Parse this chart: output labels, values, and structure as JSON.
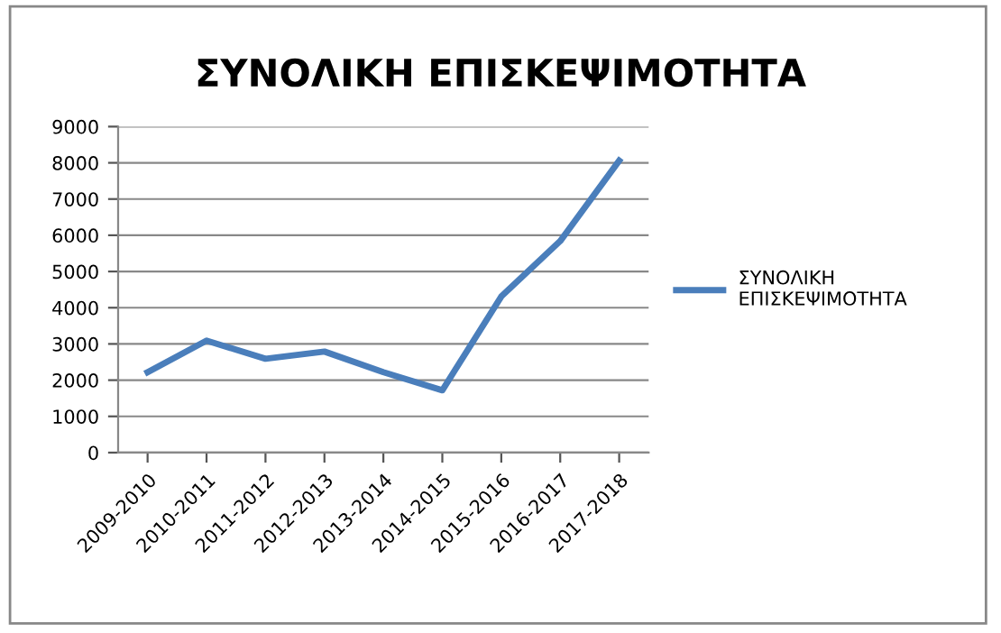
{
  "chart_data": {
    "type": "line",
    "title": "ΣΥΝΟΛΙΚΗ ΕΠΙΣΚΕΨΙΜΟΤΗΤΑ",
    "categories": [
      "2009-2010",
      "2010-2011",
      "2011-2012",
      "2012-2013",
      "2013-2014",
      "2014-2015",
      "2015-2016",
      "2016-2017",
      "2017-2018"
    ],
    "series": [
      {
        "name": "ΣΥΝΟΛΙΚΗ\nΕΠΙΣΚΕΨΙΜΟΤΗΤΑ",
        "color": "#4a7ebb",
        "values": [
          2220,
          3090,
          2590,
          2790,
          2220,
          1720,
          4310,
          5840,
          8060
        ]
      }
    ],
    "ylim": [
      0,
      9000
    ],
    "yticks": [
      0,
      1000,
      2000,
      3000,
      4000,
      5000,
      6000,
      7000,
      8000,
      9000
    ],
    "grid": "y",
    "legend": "right",
    "marker": "none",
    "line_style": "solid"
  }
}
